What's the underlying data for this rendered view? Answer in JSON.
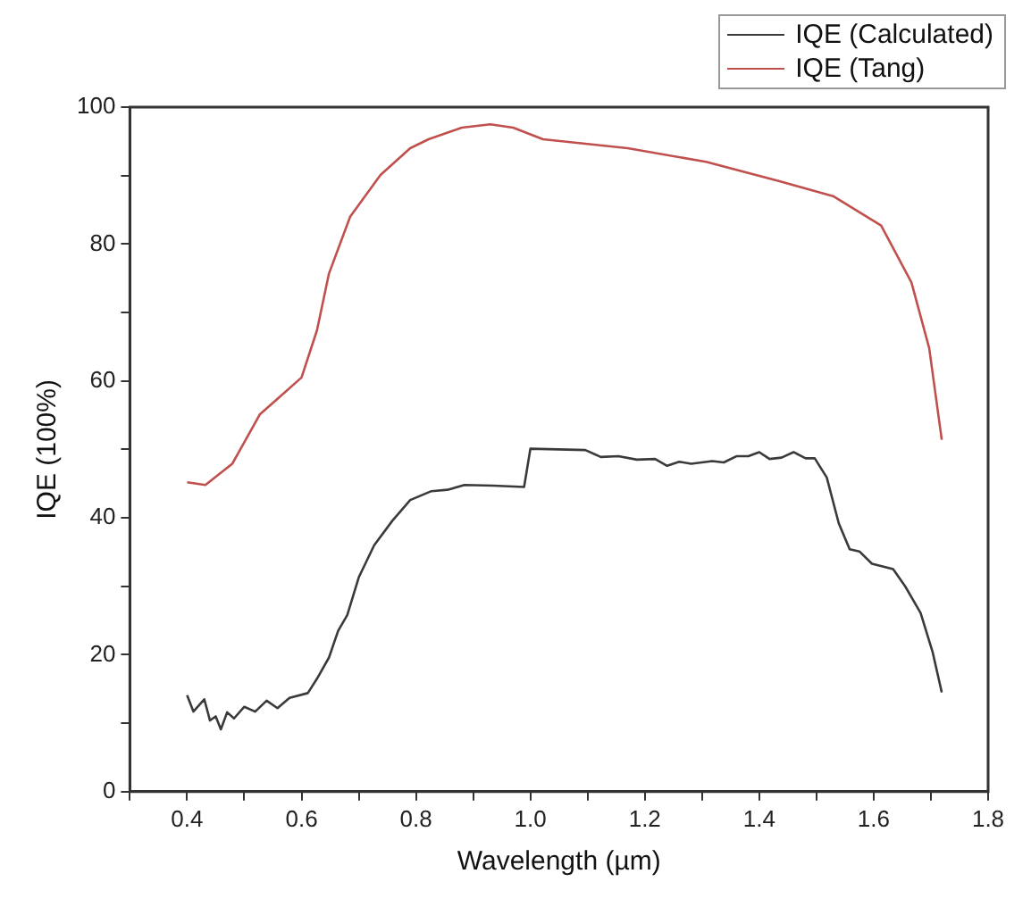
{
  "chart_data": {
    "type": "line",
    "xlabel": "Wavelength (µm)",
    "ylabel": "IQE (100%)",
    "xlim": [
      0.3,
      1.8
    ],
    "xticks": [
      {
        "value": 0.3,
        "label": null
      },
      0.4,
      {
        "value": 0.5,
        "label": null
      },
      0.6,
      {
        "value": 0.7,
        "label": null
      },
      0.8,
      {
        "value": 0.9,
        "label": null
      },
      {
        "value": 1.0,
        "label": "1.0"
      },
      {
        "value": 1.1,
        "label": null
      },
      1.2,
      {
        "value": 1.3,
        "label": null
      },
      1.4,
      {
        "value": 1.5,
        "label": null
      },
      1.6,
      {
        "value": 1.7,
        "label": null
      },
      1.8
    ],
    "ylim": [
      0,
      100
    ],
    "yticks": [
      0,
      {
        "value": 10,
        "label": null
      },
      20,
      {
        "value": 30,
        "label": null
      },
      40,
      {
        "value": 50,
        "label": null
      },
      60,
      {
        "value": 70,
        "label": null
      },
      80,
      {
        "value": 90,
        "label": null
      },
      100
    ],
    "grid": false,
    "legend": "top right",
    "marker": "none",
    "line_style": "solid",
    "series": [
      {
        "name": "IQE (Calculated)",
        "color": "#3a3a3a",
        "x": [
          0.4,
          0.411,
          0.43,
          0.44,
          0.45,
          0.459,
          0.47,
          0.482,
          0.5,
          0.519,
          0.539,
          0.558,
          0.579,
          0.611,
          0.627,
          0.648,
          0.664,
          0.68,
          0.7,
          0.727,
          0.759,
          0.79,
          0.827,
          0.855,
          0.885,
          0.935,
          0.989,
          1.0,
          1.096,
          1.123,
          1.154,
          1.186,
          1.218,
          1.239,
          1.26,
          1.281,
          1.318,
          1.338,
          1.36,
          1.381,
          1.4,
          1.418,
          1.439,
          1.46,
          1.481,
          1.497,
          1.518,
          1.539,
          1.558,
          1.575,
          1.597,
          1.634,
          1.655,
          1.682,
          1.703,
          1.719
        ],
        "values": [
          14.1,
          11.7,
          13.5,
          10.4,
          11.0,
          9.1,
          11.6,
          10.7,
          12.4,
          11.7,
          13.3,
          12.2,
          13.7,
          14.4,
          16.5,
          19.6,
          23.5,
          25.8,
          31.3,
          36.0,
          39.6,
          42.6,
          43.9,
          44.1,
          44.8,
          44.7,
          44.5,
          50.1,
          49.9,
          48.9,
          49.0,
          48.5,
          48.6,
          47.6,
          48.2,
          47.9,
          48.3,
          48.1,
          49.0,
          49.0,
          49.6,
          48.6,
          48.8,
          49.6,
          48.7,
          48.7,
          45.9,
          39.2,
          35.4,
          35.1,
          33.3,
          32.5,
          30.0,
          26.1,
          20.4,
          14.5
        ]
      },
      {
        "name": "IQE (Tang)",
        "color": "#c0504d",
        "x": [
          0.4,
          0.432,
          0.479,
          0.527,
          0.558,
          0.6,
          0.627,
          0.648,
          0.685,
          0.738,
          0.79,
          0.822,
          0.88,
          0.93,
          0.97,
          1.022,
          1.17,
          1.307,
          1.434,
          1.529,
          1.613,
          1.666,
          1.697,
          1.719
        ],
        "values": [
          45.2,
          44.8,
          47.9,
          55.1,
          57.4,
          60.5,
          67.4,
          75.7,
          84.0,
          90.1,
          94.0,
          95.3,
          97.0,
          97.5,
          97.0,
          95.3,
          94.0,
          92.0,
          89.2,
          87.0,
          82.7,
          74.4,
          64.8,
          51.4
        ]
      }
    ]
  }
}
